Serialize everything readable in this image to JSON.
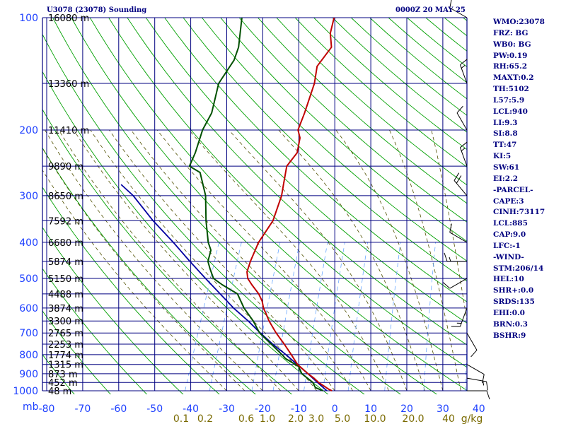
{
  "header": {
    "station": "U3078 (23078) Sounding",
    "time": "0000Z 20 MAY 25"
  },
  "indices": [
    "WMO:23078",
    "FRZ: BG",
    "WB0: BG",
    "PW:0.19",
    "RH:65.2",
    "MAXT:0.2",
    "TH:5102",
    "L57:5.9",
    "LCL:940",
    "LI:9.3",
    "SI:8.8",
    "TT:47",
    "KI:5",
    "SW:61",
    "EI:2.2",
    "-PARCEL-",
    "CAPE:3",
    "CINH:73117",
    "LCL:885",
    "CAP:9.0",
    "LFC:-1",
    "-WIND-",
    "STM:206/14",
    "HEL:10",
    "SHR+:0.0",
    "SRDS:135",
    "EHI:0.0",
    "BRN:0.3",
    "BSHR:9"
  ],
  "colors": {
    "grid": "#000080",
    "axis_text": "#1e40ff",
    "mixing_text": "#7a6a00",
    "isotherm": "#000080",
    "dry_adiabat": "#00a000",
    "moist_adiabat": "#505000",
    "mixing_ratio": "#6aa8ff",
    "temperature": "#c00000",
    "dewpoint": "#005000",
    "parcel": "#0000a0",
    "wind": "#000000"
  },
  "chart_data": {
    "type": "line",
    "title": "",
    "xlabel": "",
    "ylabel": "mb",
    "pressure_axis_unit": "mb",
    "pressure_range": [
      1000,
      100
    ],
    "pressure_ticks": [
      100,
      200,
      300,
      400,
      500,
      600,
      700,
      800,
      900,
      1000
    ],
    "temperature_range": [
      -80,
      0
    ],
    "temperature_ticks": [
      -80,
      -70,
      -60,
      -50,
      -40,
      -30,
      -20,
      -10,
      0,
      10,
      20,
      30,
      40
    ],
    "mixing_ratio_labels": [
      "0.1",
      "0.2",
      "0.6",
      "1.0",
      "2.0",
      "3.0",
      "5.0",
      "10.0",
      "20.0",
      "40",
      "g/kg"
    ],
    "grid": true,
    "height_labels": [
      {
        "p": 100,
        "label": "16080 m"
      },
      {
        "p": 150,
        "label": "13360 m"
      },
      {
        "p": 200,
        "label": "11410 m"
      },
      {
        "p": 250,
        "label": "9890 m"
      },
      {
        "p": 300,
        "label": "8650 m"
      },
      {
        "p": 350,
        "label": "7592 m"
      },
      {
        "p": 400,
        "label": "6680 m"
      },
      {
        "p": 450,
        "label": "5874 m"
      },
      {
        "p": 500,
        "label": "5150 m"
      },
      {
        "p": 550,
        "label": "4488 m"
      },
      {
        "p": 600,
        "label": "3874 m"
      },
      {
        "p": 650,
        "label": "3300 m"
      },
      {
        "p": 700,
        "label": "2765 m"
      },
      {
        "p": 750,
        "label": "2253 m"
      },
      {
        "p": 800,
        "label": "1774 m"
      },
      {
        "p": 850,
        "label": "1315 m"
      },
      {
        "p": 900,
        "label": "873 m"
      },
      {
        "p": 950,
        "label": "452 m"
      },
      {
        "p": 1000,
        "label": "48 m"
      }
    ],
    "series": [
      {
        "key": "temperature",
        "points": [
          [
            1000,
            -0.8
          ],
          [
            990,
            -1.9
          ],
          [
            950,
            -5.5
          ],
          [
            925,
            -7.3
          ],
          [
            900,
            -9.5
          ],
          [
            850,
            -13.5
          ],
          [
            800,
            -16.4
          ],
          [
            750,
            -19.6
          ],
          [
            700,
            -23.2
          ],
          [
            650,
            -26.6
          ],
          [
            620,
            -28.4
          ],
          [
            600,
            -29.7
          ],
          [
            575,
            -30.9
          ],
          [
            550,
            -32.7
          ],
          [
            520,
            -35.7
          ],
          [
            500,
            -37.6
          ],
          [
            480,
            -38.6
          ],
          [
            450,
            -38.9
          ],
          [
            400,
            -38.9
          ],
          [
            350,
            -37.5
          ],
          [
            300,
            -38.1
          ],
          [
            280,
            -38.9
          ],
          [
            250,
            -40.2
          ],
          [
            230,
            -38.9
          ],
          [
            210,
            -39.9
          ],
          [
            200,
            -41.4
          ],
          [
            180,
            -41.6
          ],
          [
            150,
            -42.4
          ],
          [
            135,
            -43.7
          ],
          [
            120,
            -42.0
          ],
          [
            110,
            -44.0
          ],
          [
            100,
            -44.8
          ]
        ]
      },
      {
        "key": "dewpoint",
        "points": [
          [
            1000,
            -3.3
          ],
          [
            980,
            -5.8
          ],
          [
            950,
            -7.1
          ],
          [
            900,
            -11.2
          ],
          [
            860,
            -13.0
          ],
          [
            820,
            -17.5
          ],
          [
            800,
            -19.0
          ],
          [
            750,
            -23.2
          ],
          [
            700,
            -27.8
          ],
          [
            650,
            -31.0
          ],
          [
            600,
            -35.1
          ],
          [
            550,
            -38.6
          ],
          [
            520,
            -43.9
          ],
          [
            500,
            -47.1
          ],
          [
            470,
            -49.3
          ],
          [
            450,
            -50.7
          ],
          [
            420,
            -51.2
          ],
          [
            400,
            -52.9
          ],
          [
            350,
            -56.1
          ],
          [
            300,
            -59.2
          ],
          [
            260,
            -63.5
          ],
          [
            250,
            -67.2
          ],
          [
            230,
            -67.2
          ],
          [
            200,
            -67.9
          ],
          [
            180,
            -67.4
          ],
          [
            150,
            -69.0
          ],
          [
            130,
            -67.5
          ],
          [
            120,
            -67.8
          ],
          [
            100,
            -70.4
          ]
        ]
      },
      {
        "key": "parcel",
        "points": [
          [
            1000,
            -2.2
          ],
          [
            950,
            -5.8
          ],
          [
            900,
            -9.5
          ],
          [
            850,
            -13.6
          ],
          [
            800,
            -17.9
          ],
          [
            750,
            -22.8
          ],
          [
            700,
            -27.6
          ],
          [
            650,
            -32.4
          ],
          [
            600,
            -38.0
          ],
          [
            550,
            -43.4
          ],
          [
            500,
            -49.3
          ],
          [
            450,
            -55.7
          ],
          [
            400,
            -62.6
          ],
          [
            350,
            -70.8
          ],
          [
            300,
            -79.3
          ],
          [
            280,
            -84.0
          ]
        ]
      }
    ],
    "winds": [
      {
        "p": 1000,
        "dir": 90,
        "spd": 10
      },
      {
        "p": 925,
        "dir": 100,
        "spd": 15
      },
      {
        "p": 850,
        "dir": 120,
        "spd": 10
      },
      {
        "p": 700,
        "dir": 150,
        "spd": 10
      },
      {
        "p": 600,
        "dir": 200,
        "spd": 15
      },
      {
        "p": 500,
        "dir": 240,
        "spd": 10
      },
      {
        "p": 450,
        "dir": 270,
        "spd": 15
      },
      {
        "p": 400,
        "dir": 300,
        "spd": 10
      },
      {
        "p": 300,
        "dir": 320,
        "spd": 20
      },
      {
        "p": 250,
        "dir": 340,
        "spd": 15
      },
      {
        "p": 200,
        "dir": 330,
        "spd": 10
      },
      {
        "p": 150,
        "dir": 340,
        "spd": 15
      },
      {
        "p": 100,
        "dir": 300,
        "spd": 10
      }
    ]
  }
}
